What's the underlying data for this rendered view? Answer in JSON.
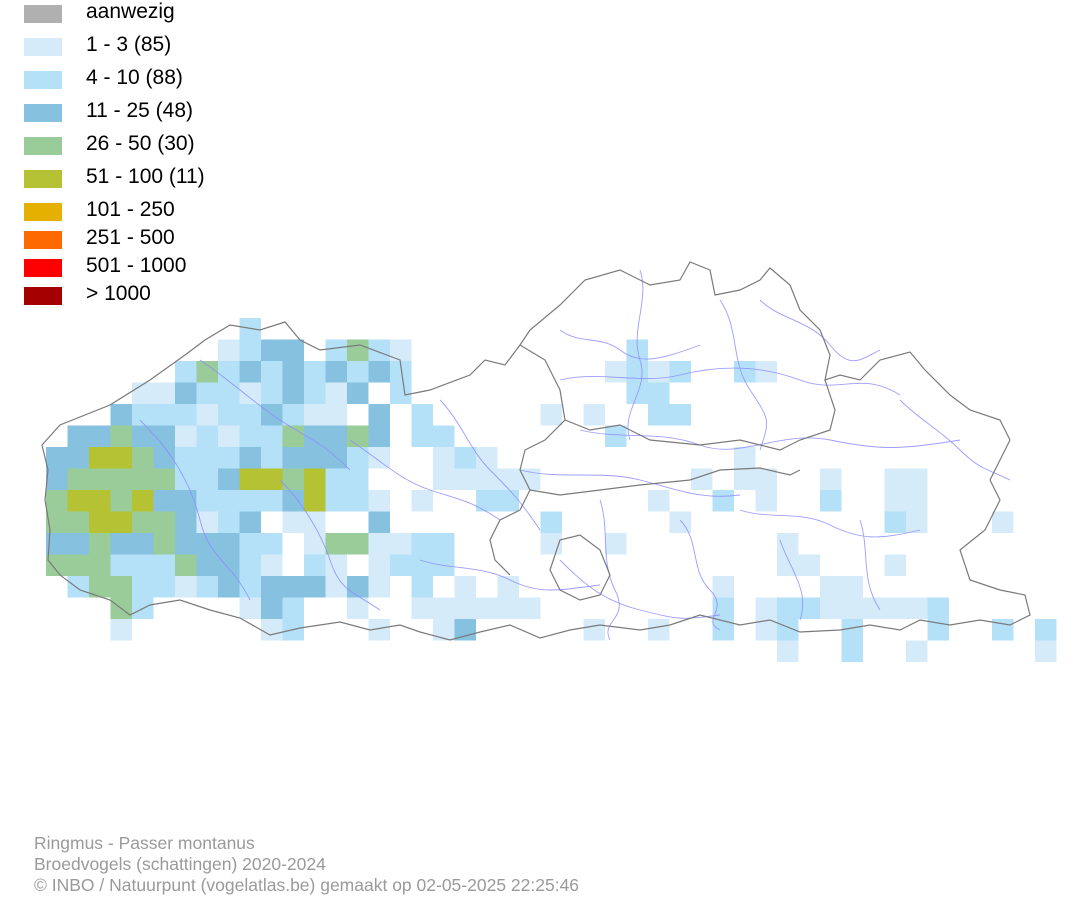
{
  "legend": [
    {
      "label": "aanwezig",
      "color": "#b0b0b0"
    },
    {
      "label": "1 - 3 (85)",
      "color": "#d5ebfa"
    },
    {
      "label": "4 - 10 (88)",
      "color": "#b5e1f8"
    },
    {
      "label": "11 - 25 (48)",
      "color": "#86c1e0"
    },
    {
      "label": "26 - 50 (30)",
      "color": "#99cc99"
    },
    {
      "label": "51 - 100 (11)",
      "color": "#b5c234"
    },
    {
      "label": "101 - 250",
      "color": "#e6b000"
    },
    {
      "label": "251 - 500",
      "color": "#ff6a00"
    },
    {
      "label": "501 - 1000",
      "color": "#ff0000"
    },
    {
      "label": "> 1000",
      "color": "#a50000"
    }
  ],
  "colors": {
    "border": "#7a7a7a",
    "rivers": "#8c8cff"
  },
  "caption": {
    "line1": "Ringmus - Passer montanus",
    "line2": "Broedvogels (schattingen) 2020-2024",
    "line3": "© INBO / Natuurpunt (vogelatlas.be) gemaakt op 02-05-2025 22:25:46"
  }
}
